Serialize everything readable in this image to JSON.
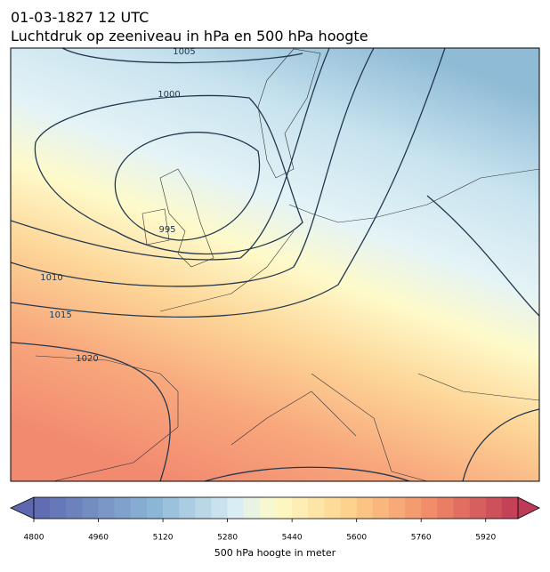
{
  "header": {
    "date": "01-03-1827 12 UTC",
    "title": "Luchtdruk op zeeniveau in hPa en 500 hPa hoogte"
  },
  "map": {
    "contour_labels": [
      1005,
      1000,
      995,
      1010,
      1015,
      1020
    ]
  },
  "colorbar": {
    "label": "500 hPa hoogte in meter",
    "range": [
      4800,
      6000
    ],
    "levels": [
      4800,
      4840,
      4880,
      4920,
      4960,
      5000,
      5040,
      5080,
      5120,
      5160,
      5200,
      5240,
      5280,
      5320,
      5360,
      5400,
      5440,
      5480,
      5520,
      5560,
      5600,
      5640,
      5680,
      5720,
      5760,
      5800,
      5840,
      5880,
      5920,
      5960,
      6000
    ],
    "ticks": [
      4800,
      4960,
      5120,
      5280,
      5440,
      5600,
      5760,
      5920
    ]
  }
}
